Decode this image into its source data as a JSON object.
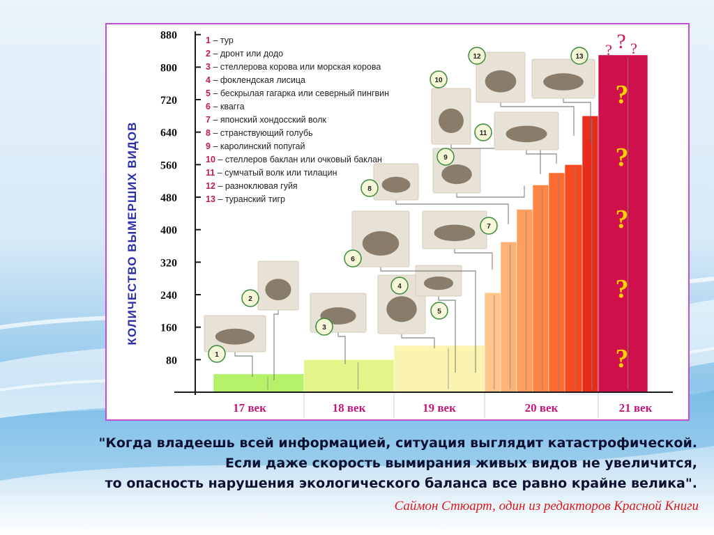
{
  "colors": {
    "axis": "#1a1a1a",
    "tick_label": "#111111",
    "ylabel": "#2b2fa8",
    "legend_number": "#c0185a",
    "legend_text": "#222222",
    "century_label": "#c0187a",
    "question_mark": "#ffd400",
    "quote": "#0d1030",
    "attribution": "#d81a1a",
    "frame": "#c14fd6"
  },
  "chart_data": {
    "type": "bar",
    "ylabel": "КОЛИЧЕСТВО ВЫМЕРШИХ ВИДОВ",
    "ylim": [
      0,
      900
    ],
    "yticks": [
      80,
      160,
      240,
      320,
      400,
      480,
      560,
      640,
      720,
      800,
      880
    ],
    "centuries": [
      "17 век",
      "18 век",
      "19 век",
      "20 век",
      "21 век"
    ],
    "steps": [
      {
        "century": "17 век",
        "value": 45,
        "color": "#b5f26a"
      },
      {
        "century": "18 век",
        "value": 80,
        "color": "#e3f588"
      },
      {
        "century": "19 век",
        "value": 115,
        "color": "#fbf4b0"
      },
      {
        "century": "20 век",
        "value": 245,
        "color": "#ffc58a"
      },
      {
        "century": "20 век",
        "value": 370,
        "color": "#ffb277"
      },
      {
        "century": "20 век",
        "value": 450,
        "color": "#ff9d5e"
      },
      {
        "century": "20 век",
        "value": 510,
        "color": "#ff8547"
      },
      {
        "century": "20 век",
        "value": 540,
        "color": "#ff6a2f"
      },
      {
        "century": "20 век",
        "value": 560,
        "color": "#f6491f"
      },
      {
        "century": "20 век",
        "value": 680,
        "color": "#e92b1e"
      },
      {
        "century": "21 век",
        "value": 830,
        "color": "#d0104a"
      }
    ],
    "question_marks": [
      "?",
      "?",
      "?",
      "?",
      "?"
    ],
    "top_question_marks": [
      "?",
      "?",
      "?"
    ],
    "legend": [
      {
        "num": "1",
        "name": "– тур"
      },
      {
        "num": "2",
        "name": "– дронт  или  додо"
      },
      {
        "num": "3",
        "name": "– стеллерова корова  или  морская корова"
      },
      {
        "num": "4",
        "name": "– фоклендская лисица"
      },
      {
        "num": "5",
        "name": "– бескрылая гагарка или северный пингвин"
      },
      {
        "num": "6",
        "name": "– квагга"
      },
      {
        "num": "7",
        "name": "– японский хондосский волк"
      },
      {
        "num": "8",
        "name": "– странствующий голубь"
      },
      {
        "num": "9",
        "name": "– каролинский попугай"
      },
      {
        "num": "10",
        "name": "– стеллеров баклан или очковый баклан"
      },
      {
        "num": "11",
        "name": "– сумчатый волк или тилацин"
      },
      {
        "num": "12",
        "name": "– разноклювая гуйя"
      },
      {
        "num": "13",
        "name": "– туранский тигр"
      }
    ],
    "animal_markers": [
      "1",
      "2",
      "3",
      "4",
      "5",
      "6",
      "7",
      "8",
      "9",
      "10",
      "11",
      "12",
      "13"
    ]
  },
  "quote": {
    "lines": [
      "\"Когда владеешь всей информацией, ситуация выглядит катастрофической.",
      "Если даже скорость вымирания живых видов не увеличится,",
      "то опасность нарушения экологического баланса все равно крайне велика\"."
    ],
    "attribution": "Саймон Стюарт, один из редакторов Красной Книги"
  }
}
